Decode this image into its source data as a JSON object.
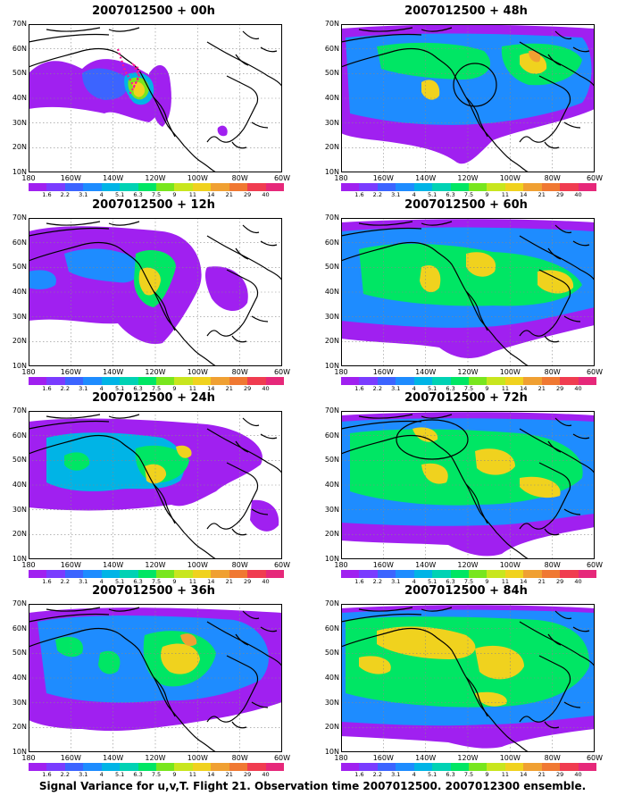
{
  "panels": [
    {
      "title": "2007012500 + 00h",
      "circle": "none",
      "flight_track": true,
      "fill": "initial"
    },
    {
      "title": "2007012500 + 12h",
      "circle": "none",
      "flight_track": false,
      "fill": "t12"
    },
    {
      "title": "2007012500 + 24h",
      "circle": "none",
      "flight_track": false,
      "fill": "t24"
    },
    {
      "title": "2007012500 + 36h",
      "circle": "none",
      "flight_track": false,
      "fill": "t36"
    },
    {
      "title": "2007012500 + 48h",
      "circle": "west-coast",
      "flight_track": false,
      "fill": "t48"
    },
    {
      "title": "2007012500 + 60h",
      "circle": "none",
      "flight_track": false,
      "fill": "t60"
    },
    {
      "title": "2007012500 + 72h",
      "circle": "northwest-canada",
      "flight_track": false,
      "fill": "t72"
    },
    {
      "title": "2007012500 + 84h",
      "circle": "none",
      "flight_track": false,
      "fill": "t84"
    }
  ],
  "axes": {
    "y_labels": [
      "70N",
      "60N",
      "50N",
      "40N",
      "30N",
      "20N",
      "10N"
    ],
    "x_labels": [
      "180",
      "160W",
      "140W",
      "120W",
      "100W",
      "80W",
      "60W"
    ]
  },
  "colorbar": {
    "labels": [
      "1.6",
      "2.2",
      "3.1",
      "4",
      "5.1",
      "6.3",
      "7.5",
      "9",
      "11",
      "14",
      "21",
      "29",
      "40"
    ],
    "colors": [
      "#a020f0",
      "#7a3cff",
      "#3c64ff",
      "#1e8cff",
      "#00b4e6",
      "#00d2b4",
      "#00e664",
      "#78e61e",
      "#c8e61e",
      "#f0d21e",
      "#f0a032",
      "#f07832",
      "#f03c50",
      "#e6287a"
    ]
  },
  "caption": "Signal Variance for u,v,T. Flight 21. Observation time 2007012500. 2007012300 ensemble."
}
